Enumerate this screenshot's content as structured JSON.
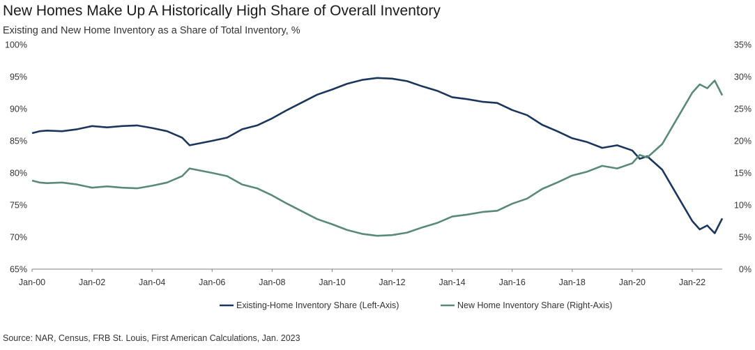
{
  "chart_data": {
    "type": "line",
    "title": "New Homes Make Up A Historically High Share of Overall Inventory",
    "subtitle": "Existing  and New Home Inventory as a Share of Total Inventory, %",
    "source": "Source: NAR, Census, FRB St. Louis, First American Calculations, Jan. 2023",
    "x_tick_labels": [
      "Jan-00",
      "Jan-02",
      "Jan-04",
      "Jan-06",
      "Jan-08",
      "Jan-10",
      "Jan-12",
      "Jan-14",
      "Jan-16",
      "Jan-18",
      "Jan-20",
      "Jan-22"
    ],
    "y_left": {
      "ylim": [
        65,
        100
      ],
      "ticks": [
        "65%",
        "70%",
        "75%",
        "80%",
        "85%",
        "90%",
        "95%",
        "100%"
      ]
    },
    "y_right": {
      "ylim": [
        0,
        35
      ],
      "ticks": [
        "0%",
        "5%",
        "10%",
        "15%",
        "20%",
        "25%",
        "30%",
        "35%"
      ]
    },
    "grid": false,
    "legend_position": "bottom",
    "series": [
      {
        "name": "Existing-Home Inventory Share (Left-Axis)",
        "axis": "left",
        "color": "#1b365d",
        "points": [
          [
            "Jan-00",
            86.2
          ],
          [
            "Apr-00",
            86.5
          ],
          [
            "Jul-00",
            86.6
          ],
          [
            "Jan-01",
            86.5
          ],
          [
            "Jul-01",
            86.8
          ],
          [
            "Jan-02",
            87.3
          ],
          [
            "Jul-02",
            87.1
          ],
          [
            "Jan-03",
            87.3
          ],
          [
            "Jul-03",
            87.4
          ],
          [
            "Jan-04",
            87.0
          ],
          [
            "Jul-04",
            86.5
          ],
          [
            "Jan-05",
            85.5
          ],
          [
            "Apr-05",
            84.3
          ],
          [
            "Jan-06",
            85.0
          ],
          [
            "Jul-06",
            85.5
          ],
          [
            "Jan-07",
            86.8
          ],
          [
            "Jul-07",
            87.4
          ],
          [
            "Jan-08",
            88.5
          ],
          [
            "Jul-08",
            89.8
          ],
          [
            "Jan-09",
            91.0
          ],
          [
            "Jul-09",
            92.2
          ],
          [
            "Jan-10",
            93.0
          ],
          [
            "Jul-10",
            93.9
          ],
          [
            "Jan-11",
            94.5
          ],
          [
            "Jul-11",
            94.8
          ],
          [
            "Jan-12",
            94.7
          ],
          [
            "Jul-12",
            94.3
          ],
          [
            "Jan-13",
            93.5
          ],
          [
            "Jul-13",
            92.8
          ],
          [
            "Jan-14",
            91.8
          ],
          [
            "Jul-14",
            91.5
          ],
          [
            "Jan-15",
            91.1
          ],
          [
            "Jul-15",
            90.9
          ],
          [
            "Jan-16",
            89.8
          ],
          [
            "Jul-16",
            89.0
          ],
          [
            "Jan-17",
            87.5
          ],
          [
            "Jul-17",
            86.5
          ],
          [
            "Jan-18",
            85.4
          ],
          [
            "Jul-18",
            84.8
          ],
          [
            "Jan-19",
            83.9
          ],
          [
            "Jul-19",
            84.3
          ],
          [
            "Jan-20",
            83.5
          ],
          [
            "Apr-20",
            82.2
          ],
          [
            "Jul-20",
            82.6
          ],
          [
            "Jan-21",
            80.5
          ],
          [
            "Jul-21",
            76.5
          ],
          [
            "Jan-22",
            72.5
          ],
          [
            "Apr-22",
            71.2
          ],
          [
            "Jul-22",
            71.8
          ],
          [
            "Oct-22",
            70.6
          ],
          [
            "Jan-23",
            72.9
          ]
        ]
      },
      {
        "name": "New Home Inventory Share (Right-Axis)",
        "axis": "right",
        "color": "#5a8a77",
        "points": [
          [
            "Jan-00",
            13.8
          ],
          [
            "Apr-00",
            13.5
          ],
          [
            "Jul-00",
            13.4
          ],
          [
            "Jan-01",
            13.5
          ],
          [
            "Jul-01",
            13.2
          ],
          [
            "Jan-02",
            12.7
          ],
          [
            "Jul-02",
            12.9
          ],
          [
            "Jan-03",
            12.7
          ],
          [
            "Jul-03",
            12.6
          ],
          [
            "Jan-04",
            13.0
          ],
          [
            "Jul-04",
            13.5
          ],
          [
            "Jan-05",
            14.5
          ],
          [
            "Apr-05",
            15.7
          ],
          [
            "Jan-06",
            15.0
          ],
          [
            "Jul-06",
            14.5
          ],
          [
            "Jan-07",
            13.2
          ],
          [
            "Jul-07",
            12.6
          ],
          [
            "Jan-08",
            11.5
          ],
          [
            "Jul-08",
            10.2
          ],
          [
            "Jan-09",
            9.0
          ],
          [
            "Jul-09",
            7.8
          ],
          [
            "Jan-10",
            7.0
          ],
          [
            "Jul-10",
            6.1
          ],
          [
            "Jan-11",
            5.5
          ],
          [
            "Jul-11",
            5.2
          ],
          [
            "Jan-12",
            5.3
          ],
          [
            "Jul-12",
            5.7
          ],
          [
            "Jan-13",
            6.5
          ],
          [
            "Jul-13",
            7.2
          ],
          [
            "Jan-14",
            8.2
          ],
          [
            "Jul-14",
            8.5
          ],
          [
            "Jan-15",
            8.9
          ],
          [
            "Jul-15",
            9.1
          ],
          [
            "Jan-16",
            10.2
          ],
          [
            "Jul-16",
            11.0
          ],
          [
            "Jan-17",
            12.5
          ],
          [
            "Jul-17",
            13.5
          ],
          [
            "Jan-18",
            14.6
          ],
          [
            "Jul-18",
            15.2
          ],
          [
            "Jan-19",
            16.1
          ],
          [
            "Jul-19",
            15.7
          ],
          [
            "Jan-20",
            16.5
          ],
          [
            "Apr-20",
            17.8
          ],
          [
            "Jul-20",
            17.4
          ],
          [
            "Jan-21",
            19.5
          ],
          [
            "Jul-21",
            23.5
          ],
          [
            "Jan-22",
            27.5
          ],
          [
            "Apr-22",
            28.8
          ],
          [
            "Jul-22",
            28.2
          ],
          [
            "Oct-22",
            29.4
          ],
          [
            "Jan-23",
            27.1
          ]
        ]
      }
    ]
  }
}
